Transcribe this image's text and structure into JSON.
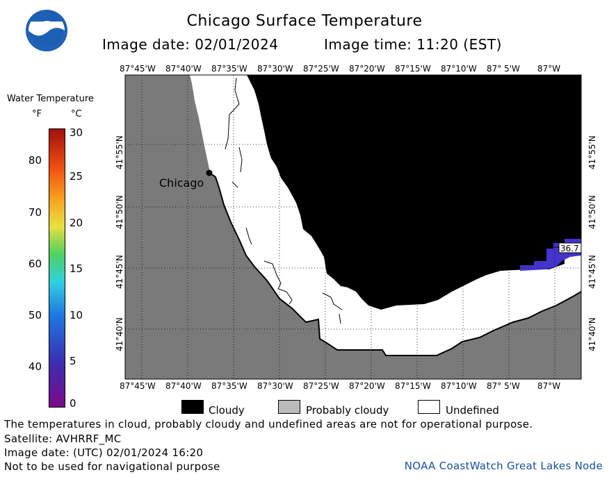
{
  "header": {
    "title": "Chicago Surface Temperature",
    "image_date": "Image date: 02/01/2024",
    "image_time": "Image time: 11:20 (EST)"
  },
  "logo": {
    "text": "NOAA",
    "icon": "noaa-logo"
  },
  "legend": {
    "title": "Water Temperature",
    "unit_f": "°F",
    "unit_c": "°C",
    "f_ticks": [
      "80",
      "70",
      "60",
      "50",
      "40"
    ],
    "c_ticks": [
      "30",
      "25",
      "20",
      "15",
      "10",
      "5",
      "0"
    ],
    "items": [
      {
        "label": "Cloudy",
        "color": "#000000"
      },
      {
        "label": "Probably cloudy",
        "color": "#bbbbbb"
      },
      {
        "label": "Undefined",
        "color": "#ffffff"
      }
    ]
  },
  "map": {
    "lon_labels_top": [
      "87°45'W",
      "87°40'W",
      "87°35'W",
      "87°30'W",
      "87°25'W",
      "87°20'W",
      "87°15'W",
      "87°10'W",
      "87° 5'W",
      "87°W"
    ],
    "lon_labels_bottom": [
      "87°45'W",
      "87°40'W",
      "87°35'W",
      "87°30'W",
      "87°25'W",
      "87°20'W",
      "87°15'W",
      "87°10'W",
      "87° 5'W",
      "87°W"
    ],
    "lat_labels": [
      "41°55'N",
      "41°50'N",
      "41°45'N",
      "41°40'N"
    ],
    "city_label": "Chicago",
    "temp_reading": "36.7",
    "colors": {
      "land": "#7a7a7a",
      "cloud": "#000000",
      "undefined": "#ffffff",
      "water_cold": "#4433cc"
    }
  },
  "footer": {
    "note": "The temperatures in cloud, probably cloudy and undefined areas are not for operational purpose.",
    "satellite": "Satellite: AVHRRF_MC",
    "utc_date": "Image date: (UTC) 02/01/2024  16:20",
    "nav_warning": "Not to be used for navigational purpose",
    "credit": "NOAA CoastWatch Great Lakes Node"
  }
}
